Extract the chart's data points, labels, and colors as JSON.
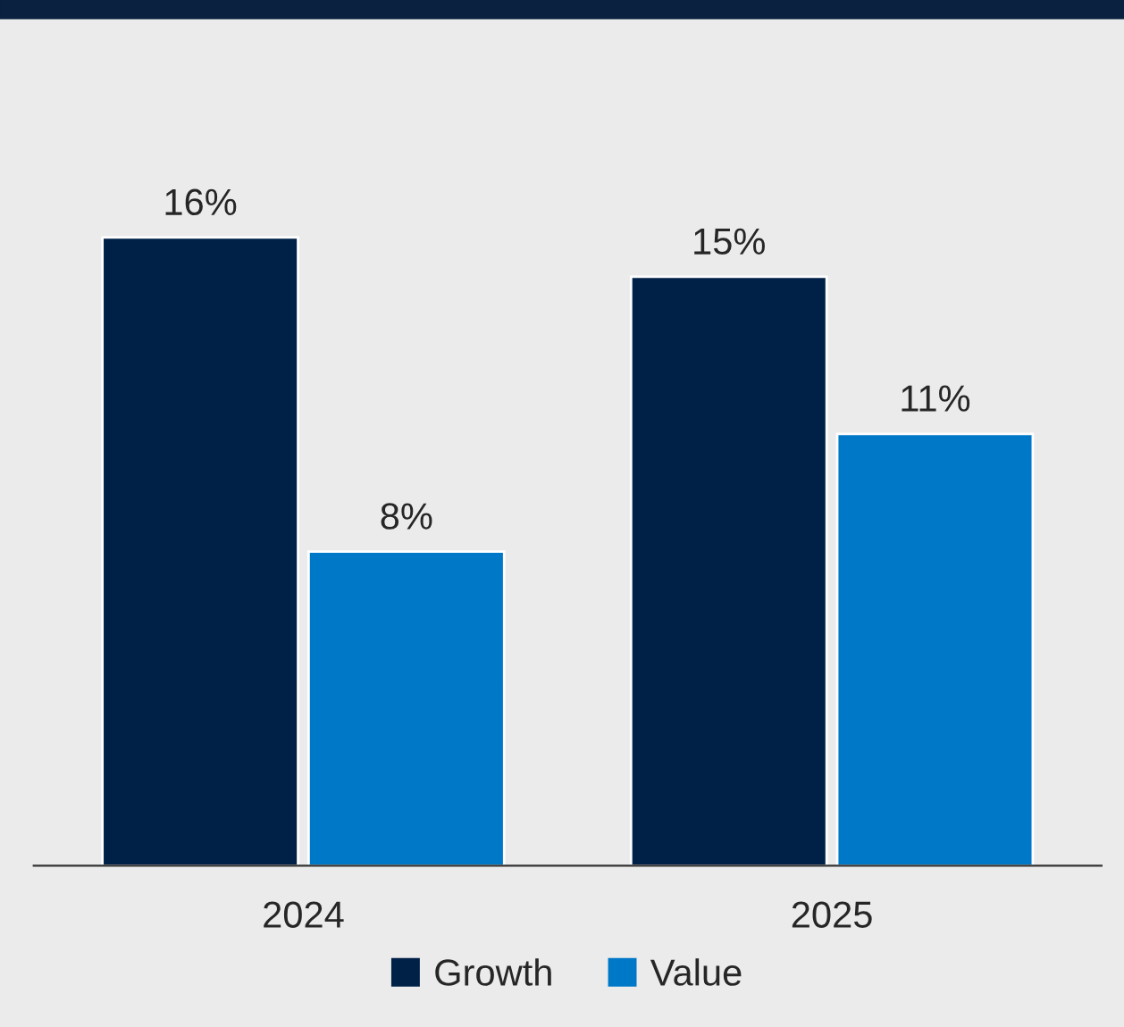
{
  "chart_data": {
    "type": "bar",
    "categories": [
      "2024",
      "2025"
    ],
    "series": [
      {
        "name": "Growth",
        "color": "#002147",
        "values": [
          16,
          15
        ],
        "value_labels": [
          "16%",
          "15%"
        ]
      },
      {
        "name": "Value",
        "color": "#0078c8",
        "values": [
          8,
          11
        ],
        "value_labels": [
          "8%",
          "11%"
        ]
      }
    ],
    "grid": false,
    "legend": "bottom",
    "tick_labels": "x"
  }
}
